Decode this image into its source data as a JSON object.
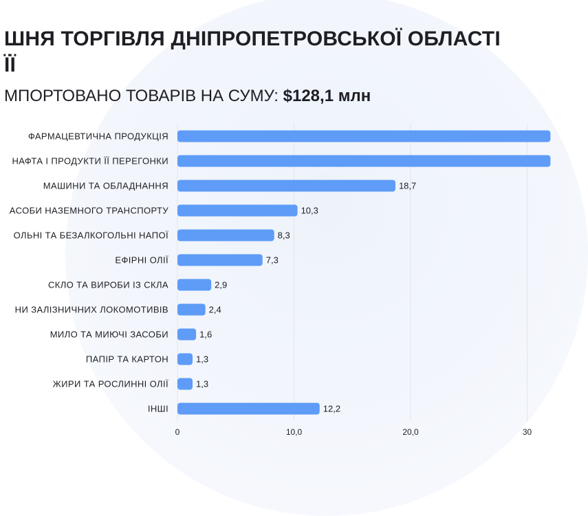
{
  "header": {
    "title_line_1": "ШНЯ ТОРГІВЛЯ ДНІПРОПЕТРОВСЬКОЇ ОБЛАСТІ",
    "title_line_2": "ЇЇ",
    "subtitle_prefix": "МПОРТОВАНО ТОВАРІВ НА СУМУ:",
    "subtitle_value": "$128,1 млн"
  },
  "colors": {
    "bar": "#5e9cf7",
    "text": "#1e1e24",
    "grid": "#e2e4ea"
  },
  "chart_data": {
    "type": "bar",
    "orientation": "horizontal",
    "categories": [
      "ФАРМАЦЕВТИЧНА ПРОДУКЦІЯ",
      "НАФТА І ПРОДУКТИ ЇЇ ПЕРЕГОНКИ",
      "МАШИНИ ТА ОБЛАДНАННЯ",
      "АСОБИ НАЗЕМНОГО ТРАНСПОРТУ",
      "ОЛЬНІ ТА БЕЗАЛКОГОЛЬНІ НАПОЇ",
      "ЕФІРНІ ОЛІЇ",
      "СКЛО ТА ВИРОБИ ІЗ СКЛА",
      "НИ ЗАЛІЗНИЧНИХ ЛОКОМОТИВІВ",
      "МИЛО ТА МИЮЧІ ЗАСОБИ",
      "ПАПІР ТА КАРТОН",
      "ЖИРИ ТА РОСЛИННІ ОЛІЇ",
      "ІНШІ"
    ],
    "values": [
      32,
      32,
      18.7,
      10.3,
      8.3,
      7.3,
      2.9,
      2.4,
      1.6,
      1.3,
      1.3,
      12.2
    ],
    "value_labels": [
      "",
      "",
      "18,7",
      "10,3",
      "8,3",
      "7,3",
      "2,9",
      "2,4",
      "1,6",
      "1,3",
      "1,3",
      "12,2"
    ],
    "x_ticks": [
      0,
      10,
      20,
      30
    ],
    "x_tick_labels": [
      "0",
      "10,0",
      "20,0",
      "30"
    ],
    "xlim": [
      0,
      30
    ],
    "grid": true
  }
}
